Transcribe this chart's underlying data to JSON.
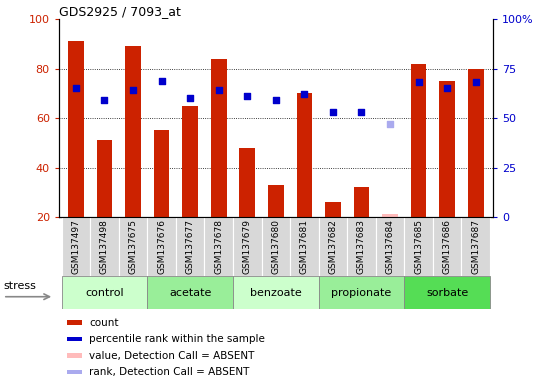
{
  "title": "GDS2925 / 7093_at",
  "samples": [
    "GSM137497",
    "GSM137498",
    "GSM137675",
    "GSM137676",
    "GSM137677",
    "GSM137678",
    "GSM137679",
    "GSM137680",
    "GSM137681",
    "GSM137682",
    "GSM137683",
    "GSM137684",
    "GSM137685",
    "GSM137686",
    "GSM137687"
  ],
  "bar_heights": [
    91,
    51,
    89,
    55,
    65,
    84,
    48,
    33,
    70,
    26,
    32,
    21,
    82,
    75,
    80
  ],
  "bar_color": "#cc2200",
  "dot_values": [
    65,
    59,
    64,
    69,
    60,
    64,
    61,
    59,
    62,
    53,
    53,
    null,
    68,
    65,
    68
  ],
  "dot_color": "#0000cc",
  "absent_bar_idx": 11,
  "absent_bar_height": 21,
  "absent_bar_color": "#ffbbbb",
  "absent_rank_idx": 11,
  "absent_rank_value": 47,
  "absent_rank_color": "#aaaaee",
  "groups": [
    {
      "label": "control",
      "start": 0,
      "end": 3,
      "color": "#ccffcc"
    },
    {
      "label": "acetate",
      "start": 3,
      "end": 6,
      "color": "#99ee99"
    },
    {
      "label": "benzoate",
      "start": 6,
      "end": 9,
      "color": "#ccffcc"
    },
    {
      "label": "propionate",
      "start": 9,
      "end": 12,
      "color": "#99ee99"
    },
    {
      "label": "sorbate",
      "start": 12,
      "end": 15,
      "color": "#55dd55"
    }
  ],
  "ylim_left": [
    20,
    100
  ],
  "ylim_right": [
    0,
    100
  ],
  "yticks_left": [
    20,
    40,
    60,
    80,
    100
  ],
  "ytick_labels_left": [
    "20",
    "40",
    "60",
    "80",
    "100"
  ],
  "yticks_right": [
    0,
    25,
    50,
    75,
    100
  ],
  "ytick_labels_right": [
    "0",
    "25",
    "50",
    "75",
    "100%"
  ],
  "ylabel_left_color": "#cc2200",
  "ylabel_right_color": "#0000cc",
  "grid_at": [
    40,
    60,
    80
  ],
  "stress_label": "stress",
  "legend": [
    {
      "label": "count",
      "color": "#cc2200"
    },
    {
      "label": "percentile rank within the sample",
      "color": "#0000cc"
    },
    {
      "label": "value, Detection Call = ABSENT",
      "color": "#ffbbbb"
    },
    {
      "label": "rank, Detection Call = ABSENT",
      "color": "#aaaaee"
    }
  ],
  "figsize": [
    5.6,
    3.84
  ],
  "dpi": 100,
  "tick_label_bg": "#d8d8d8",
  "plot_bg": "#ffffff"
}
